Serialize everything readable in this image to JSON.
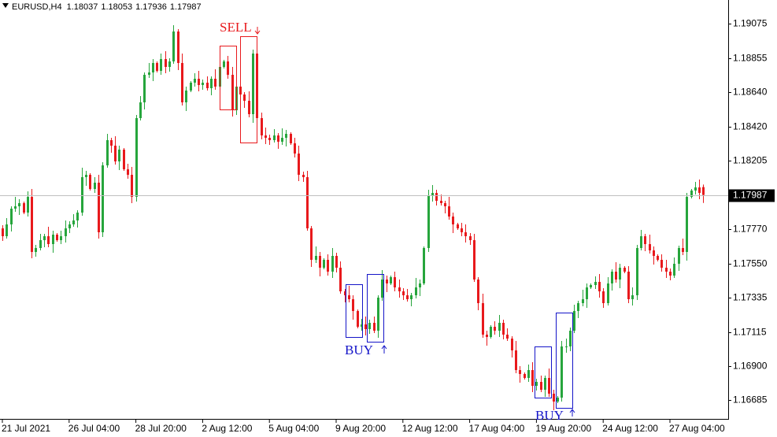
{
  "chart_data": {
    "type": "candlestick",
    "title": "EURUSD,H4",
    "categories": [
      "21 Jul 2021",
      null,
      null,
      null,
      null,
      null,
      null,
      null,
      null,
      null,
      null,
      null,
      null,
      null,
      null,
      null,
      "26 Jul 04:00",
      null,
      null,
      null,
      null,
      null,
      null,
      null,
      null,
      null,
      null,
      null,
      null,
      null,
      null,
      null,
      "28 Jul 20:00",
      null,
      null,
      null,
      null,
      null,
      null,
      null,
      null,
      null,
      null,
      null,
      null,
      null,
      null,
      null,
      "2 Aug 12:00",
      null,
      null,
      null,
      null,
      null,
      null,
      null,
      null,
      null,
      null,
      null,
      null,
      null,
      null,
      null,
      "5 Aug 04:00",
      null,
      null,
      null,
      null,
      null,
      null,
      null,
      null,
      null,
      null,
      null,
      null,
      null,
      null,
      null,
      "9 Aug 20:00",
      null,
      null,
      null,
      null,
      null,
      null,
      null,
      null,
      null,
      null,
      null,
      null,
      null,
      null,
      null,
      "12 Aug 12:00",
      null,
      null,
      null,
      null,
      null,
      null,
      null,
      null,
      null,
      null,
      null,
      null,
      null,
      null,
      null,
      "17 Aug 04:00",
      null,
      null,
      null,
      null,
      null,
      null,
      null,
      null,
      null,
      null,
      null,
      null,
      null,
      null,
      null,
      "19 Aug 20:00",
      null,
      null,
      null,
      null,
      null,
      null,
      null,
      null,
      null,
      null,
      null,
      null,
      null,
      null,
      null,
      "24 Aug 12:00",
      null,
      null,
      null,
      null,
      null,
      null,
      null,
      null,
      null,
      null,
      null,
      null,
      null,
      null,
      null,
      "27 Aug 04:00",
      null,
      null,
      null,
      null,
      null,
      null,
      null,
      null
    ],
    "open": [
      1.17775,
      1.17725,
      1.178,
      1.179,
      1.17915,
      1.17935,
      1.17875,
      1.17975,
      1.17625,
      1.1765,
      1.177,
      1.17725,
      1.17675,
      1.17735,
      1.177,
      1.17725,
      1.17775,
      1.178,
      1.17825,
      1.17875,
      1.181,
      1.18115,
      1.18025,
      1.18065,
      1.1775,
      1.18175,
      1.18335,
      1.183,
      1.182,
      1.18275,
      1.1815,
      1.18115,
      1.17975,
      1.18475,
      1.18575,
      1.1875,
      1.18765,
      1.18825,
      1.18775,
      1.1885,
      1.188,
      1.18835,
      1.19025,
      1.18825,
      1.18575,
      1.1865,
      1.187,
      1.18725,
      1.18685,
      1.187,
      1.18665,
      1.18725,
      1.18675,
      1.188,
      1.18835,
      1.1875,
      1.18525,
      1.18675,
      1.18625,
      1.18585,
      1.185,
      1.18885,
      1.18475,
      1.18365,
      1.1835,
      1.18335,
      1.18365,
      1.18325,
      1.1835,
      1.18375,
      1.18315,
      1.1825,
      1.18115,
      1.181,
      1.17775,
      1.17575,
      1.176,
      1.17525,
      1.17575,
      1.175,
      1.176,
      1.17525,
      1.17375,
      1.1735,
      1.17325,
      1.1725,
      1.1715,
      1.17165,
      1.17135,
      1.17175,
      1.17125,
      1.17335,
      1.1745,
      1.17425,
      1.17465,
      1.174,
      1.17375,
      1.1735,
      1.17325,
      1.1735,
      1.174,
      1.17425,
      1.1765,
      1.17985,
      1.18,
      1.1795,
      1.17935,
      1.17915,
      1.1785,
      1.178,
      1.17775,
      1.1775,
      1.17725,
      1.177,
      1.1745,
      1.173,
      1.171,
      1.17085,
      1.1715,
      1.17125,
      1.17175,
      1.171,
      1.17075,
      1.17,
      1.16875,
      1.1685,
      1.16825,
      1.16875,
      1.16775,
      1.168,
      1.1675,
      1.16825,
      1.16725,
      1.16675,
      1.167,
      1.17025,
      1.17025,
      1.17125,
      1.1725,
      1.173,
      1.17325,
      1.174,
      1.17415,
      1.17435,
      1.17375,
      1.173,
      1.17425,
      1.175,
      1.1745,
      1.17525,
      1.175,
      1.17325,
      1.1735,
      1.1765,
      1.17725,
      1.17675,
      1.17635,
      1.176,
      1.17575,
      1.17525,
      1.175,
      1.17475,
      1.1755,
      1.1765,
      1.17625,
      1.17975,
      1.18015,
      1.18035,
      1.18037
    ],
    "high": [
      1.17795,
      1.1784,
      1.17915,
      1.17975,
      1.1796,
      1.17945,
      1.1801,
      1.18025,
      1.1767,
      1.1774,
      1.1774,
      1.17785,
      1.1776,
      1.17745,
      1.1776,
      1.17825,
      1.1782,
      1.17865,
      1.1789,
      1.1816,
      1.1814,
      1.18125,
      1.181,
      1.18115,
      1.18195,
      1.18375,
      1.1835,
      1.1836,
      1.183,
      1.18285,
      1.18185,
      1.18165,
      1.18495,
      1.18615,
      1.18765,
      1.18825,
      1.1885,
      1.18835,
      1.18885,
      1.189,
      1.18855,
      1.19065,
      1.1904,
      1.18885,
      1.18675,
      1.1871,
      1.1876,
      1.18775,
      1.1872,
      1.1874,
      1.1874,
      1.18785,
      1.18825,
      1.18845,
      1.1887,
      1.188,
      1.18695,
      1.18715,
      1.1864,
      1.18645,
      1.1891,
      1.18895,
      1.1851,
      1.18415,
      1.1837,
      1.18405,
      1.1838,
      1.1841,
      1.184,
      1.18385,
      1.1835,
      1.183,
      1.18135,
      1.1814,
      1.1779,
      1.1766,
      1.17625,
      1.17585,
      1.1761,
      1.1765,
      1.1762,
      1.17565,
      1.1739,
      1.1741,
      1.1735,
      1.1726,
      1.172,
      1.17215,
      1.17195,
      1.17215,
      1.1735,
      1.1751,
      1.17475,
      1.17475,
      1.175,
      1.1745,
      1.17395,
      1.1739,
      1.17365,
      1.1746,
      1.1745,
      1.1766,
      1.1802,
      1.1805,
      1.1802,
      1.1799,
      1.1795,
      1.17975,
      1.17875,
      1.1781,
      1.1781,
      1.178,
      1.17745,
      1.1774,
      1.17465,
      1.1736,
      1.17125,
      1.1716,
      1.17185,
      1.17225,
      1.17195,
      1.1714,
      1.1709,
      1.1706,
      1.169,
      1.1686,
      1.1691,
      1.16925,
      1.1682,
      1.1684,
      1.1684,
      1.16885,
      1.1675,
      1.1671,
      1.1706,
      1.17075,
      1.17145,
      1.1729,
      1.17315,
      1.17385,
      1.17425,
      1.17425,
      1.1747,
      1.17485,
      1.17395,
      1.17465,
      1.17515,
      1.1756,
      1.1755,
      1.17535,
      1.17535,
      1.174,
      1.1767,
      1.17765,
      1.1774,
      1.17735,
      1.1766,
      1.1761,
      1.1761,
      1.17575,
      1.1752,
      1.1759,
      1.17665,
      1.1771,
      1.18,
      1.18025,
      1.1807,
      1.18085,
      1.18053
    ],
    "low": [
      1.17695,
      1.1771,
      1.17755,
      1.1788,
      1.1786,
      1.17865,
      1.1785,
      1.17585,
      1.17595,
      1.17635,
      1.17655,
      1.17655,
      1.1762,
      1.1769,
      1.17675,
      1.17685,
      1.17745,
      1.17785,
      1.1778,
      1.17855,
      1.18045,
      1.18015,
      1.18,
      1.1771,
      1.1772,
      1.1816,
      1.18255,
      1.1818,
      1.18145,
      1.1814,
      1.1809,
      1.17935,
      1.17945,
      1.1846,
      1.1853,
      1.1873,
      1.1871,
      1.18765,
      1.1875,
      1.1876,
      1.1877,
      1.1882,
      1.1878,
      1.18555,
      1.1852,
      1.1864,
      1.18675,
      1.18645,
      1.18655,
      1.1865,
      1.1862,
      1.18655,
      1.1862,
      1.1879,
      1.18725,
      1.18485,
      1.18495,
      1.1861,
      1.1854,
      1.1848,
      1.18445,
      1.18465,
      1.1834,
      1.1831,
      1.18305,
      1.1832,
      1.1828,
      1.18305,
      1.18295,
      1.18305,
      1.18225,
      1.18075,
      1.1807,
      1.1776,
      1.1753,
      1.17555,
      1.1747,
      1.17515,
      1.17475,
      1.1746,
      1.17495,
      1.1736,
      1.17305,
      1.17305,
      1.17195,
      1.1714,
      1.17125,
      1.17095,
      1.17105,
      1.1711,
      1.1708,
      1.17315,
      1.1737,
      1.17415,
      1.17375,
      1.17335,
      1.1732,
      1.1731,
      1.1728,
      1.1733,
      1.17345,
      1.17415,
      1.17625,
      1.17945,
      1.1792,
      1.1792,
      1.1787,
      1.1783,
      1.17745,
      1.17765,
      1.17725,
      1.17685,
      1.1767,
      1.17435,
      1.17255,
      1.1708,
      1.1703,
      1.17075,
      1.171,
      1.17085,
      1.1707,
      1.1706,
      1.16955,
      1.16855,
      1.16795,
      1.16815,
      1.168,
      1.16735,
      1.16745,
      1.16735,
      1.16705,
      1.16705,
      1.1662,
      1.16665,
      1.16675,
      1.16985,
      1.16995,
      1.1711,
      1.17205,
      1.1728,
      1.1727,
      1.1739,
      1.1739,
      1.17335,
      1.1727,
      1.17285,
      1.1738,
      1.1743,
      1.17395,
      1.1749,
      1.173,
      1.17285,
      1.1732,
      1.17635,
      1.1763,
      1.17615,
      1.17545,
      1.17565,
      1.175,
      1.1746,
      1.17445,
      1.1746,
      1.17505,
      1.17605,
      1.1757,
      1.17965,
      1.1799,
      1.1796,
      1.17936
    ],
    "close": [
      1.17725,
      1.178,
      1.179,
      1.17915,
      1.17935,
      1.17875,
      1.17975,
      1.17625,
      1.1765,
      1.177,
      1.17725,
      1.17675,
      1.17735,
      1.177,
      1.17725,
      1.17775,
      1.178,
      1.17825,
      1.17875,
      1.181,
      1.18115,
      1.18025,
      1.18065,
      1.1775,
      1.18175,
      1.18335,
      1.183,
      1.182,
      1.18275,
      1.1815,
      1.18115,
      1.17975,
      1.18475,
      1.18575,
      1.1875,
      1.18765,
      1.18825,
      1.18775,
      1.1885,
      1.188,
      1.18835,
      1.19025,
      1.18825,
      1.18575,
      1.1865,
      1.187,
      1.18725,
      1.18685,
      1.187,
      1.18665,
      1.18725,
      1.18675,
      1.188,
      1.18835,
      1.1875,
      1.18525,
      1.18675,
      1.18625,
      1.18585,
      1.185,
      1.18885,
      1.18475,
      1.18365,
      1.1835,
      1.18335,
      1.18365,
      1.18325,
      1.1835,
      1.18375,
      1.18315,
      1.1825,
      1.18115,
      1.181,
      1.17775,
      1.17575,
      1.176,
      1.17525,
      1.17575,
      1.175,
      1.176,
      1.17525,
      1.17375,
      1.1735,
      1.17325,
      1.1725,
      1.1715,
      1.17165,
      1.17135,
      1.17175,
      1.17125,
      1.17335,
      1.1745,
      1.17425,
      1.17465,
      1.174,
      1.17375,
      1.1735,
      1.17325,
      1.1735,
      1.174,
      1.17425,
      1.1765,
      1.17985,
      1.18,
      1.1795,
      1.17935,
      1.17915,
      1.1785,
      1.178,
      1.17775,
      1.1775,
      1.17725,
      1.177,
      1.1745,
      1.173,
      1.171,
      1.17085,
      1.1715,
      1.17125,
      1.17175,
      1.171,
      1.17075,
      1.17,
      1.16875,
      1.1685,
      1.16825,
      1.16875,
      1.16775,
      1.168,
      1.1675,
      1.16825,
      1.16725,
      1.16675,
      1.167,
      1.17025,
      1.17025,
      1.17125,
      1.1725,
      1.173,
      1.17325,
      1.174,
      1.17415,
      1.17435,
      1.17375,
      1.173,
      1.17425,
      1.175,
      1.1745,
      1.17525,
      1.175,
      1.17325,
      1.1735,
      1.1765,
      1.17725,
      1.17675,
      1.17635,
      1.176,
      1.17575,
      1.17525,
      1.175,
      1.17475,
      1.1755,
      1.1765,
      1.17625,
      1.17975,
      1.18015,
      1.18035,
      1.18,
      1.17987
    ],
    "up_color": "#26a53c",
    "down_color": "#e8191c",
    "ylim": [
      1.16575,
      1.19225
    ],
    "yticks": [
      1.19075,
      1.18855,
      {
        "value": 1.1864,
        "label": "1.18640"
      },
      {
        "value": 1.1842,
        "label": "1.18420"
      },
      1.18205,
      {
        "value": 1.1777,
        "label": "1.17770"
      },
      {
        "value": 1.1755,
        "label": "1.17550"
      },
      1.17335,
      1.17115,
      {
        "value": 1.169,
        "label": "1.16900"
      },
      1.16685
    ],
    "annotations": [
      "SELL",
      "BUY",
      "BUY"
    ]
  }
}
